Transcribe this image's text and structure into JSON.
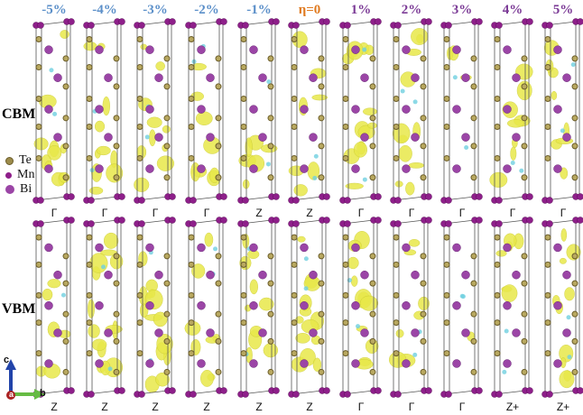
{
  "columns": [
    {
      "strain": "-5%",
      "color": "#5b8fc9",
      "cbm_k": "Γ",
      "vbm_k": "Z"
    },
    {
      "strain": "-4%",
      "color": "#5b8fc9",
      "cbm_k": "Γ",
      "vbm_k": "Z"
    },
    {
      "strain": "-3%",
      "color": "#5b8fc9",
      "cbm_k": "Γ",
      "vbm_k": "Z"
    },
    {
      "strain": "-2%",
      "color": "#5b8fc9",
      "cbm_k": "Γ",
      "vbm_k": "Z"
    },
    {
      "strain": "-1%",
      "color": "#5b8fc9",
      "cbm_k": "Z",
      "vbm_k": "Z"
    },
    {
      "strain": "η=0",
      "color": "#e07a1f",
      "cbm_k": "Z",
      "vbm_k": "Z"
    },
    {
      "strain": "1%",
      "color": "#7b3a96",
      "cbm_k": "Γ",
      "vbm_k": "Γ"
    },
    {
      "strain": "2%",
      "color": "#7b3a96",
      "cbm_k": "Γ",
      "vbm_k": "Γ"
    },
    {
      "strain": "3%",
      "color": "#7b3a96",
      "cbm_k": "Γ",
      "vbm_k": "Γ"
    },
    {
      "strain": "4%",
      "color": "#7b3a96",
      "cbm_k": "Γ",
      "vbm_k": "Z+"
    },
    {
      "strain": "5%",
      "color": "#7b3a96",
      "cbm_k": "Γ",
      "vbm_k": "Z+"
    }
  ],
  "rows": {
    "cbm": {
      "label": "CBM",
      "color": "#d42a2a"
    },
    "vbm": {
      "label": "VBM",
      "color": "#3a66b8"
    }
  },
  "legend": [
    {
      "label": "Te",
      "color": "#9c8b4a"
    },
    {
      "label": "Mn",
      "color": "#8e1f8a"
    },
    {
      "label": "Bi",
      "color": "#9b45a6"
    }
  ],
  "axes": {
    "c": "c",
    "a": "a",
    "b": "b"
  },
  "colors": {
    "isosurface": "#e8e84a",
    "isosurface_negative": "#6fd0e0",
    "cell_edge": "#555555"
  }
}
